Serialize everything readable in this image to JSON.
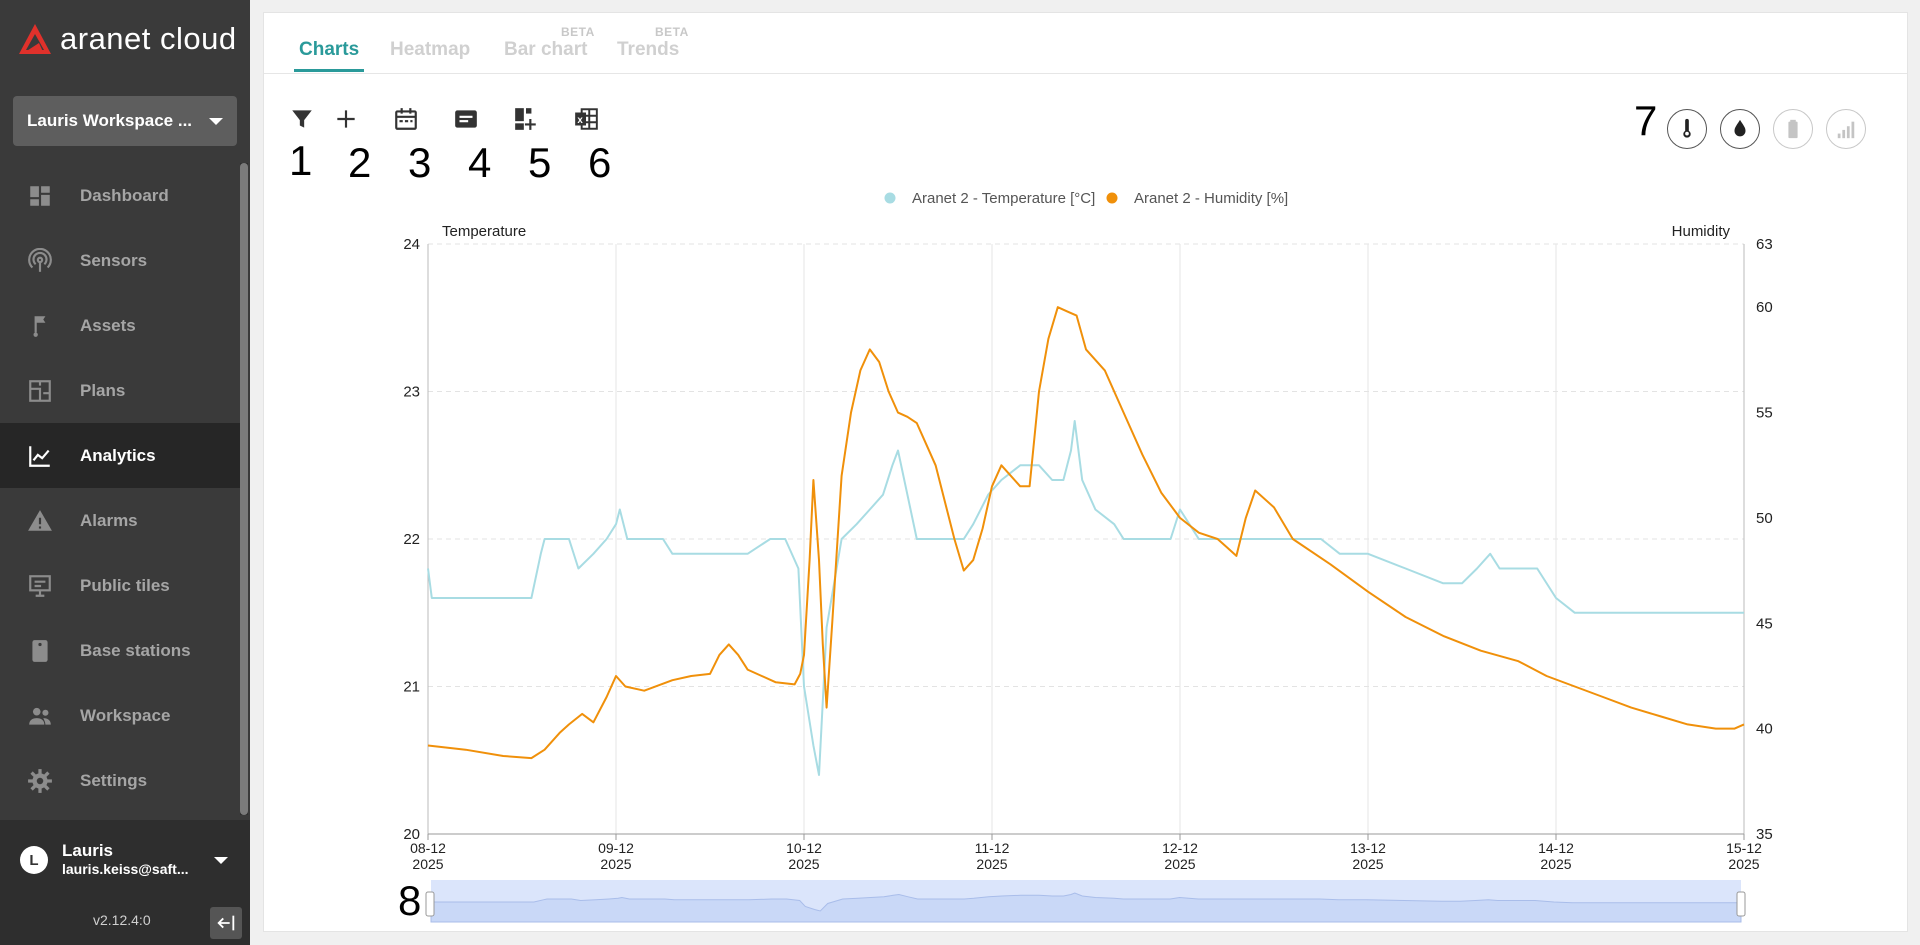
{
  "app": {
    "logo_text": "aranet cloud",
    "version": "v2.12.4:0"
  },
  "workspace": {
    "name": "Lauris Workspace ..."
  },
  "sidebar": {
    "items": [
      {
        "label": "Dashboard",
        "icon": "dashboard-icon"
      },
      {
        "label": "Sensors",
        "icon": "sensors-icon"
      },
      {
        "label": "Assets",
        "icon": "assets-icon"
      },
      {
        "label": "Plans",
        "icon": "plans-icon"
      },
      {
        "label": "Analytics",
        "icon": "analytics-icon",
        "active": true
      },
      {
        "label": "Alarms",
        "icon": "alarms-icon"
      },
      {
        "label": "Public tiles",
        "icon": "public-tiles-icon"
      },
      {
        "label": "Base stations",
        "icon": "base-stations-icon"
      },
      {
        "label": "Workspace",
        "icon": "workspace-icon"
      },
      {
        "label": "Settings",
        "icon": "settings-icon"
      }
    ]
  },
  "user": {
    "initial": "L",
    "name": "Lauris",
    "email": "lauris.keiss@saft..."
  },
  "tabs": [
    {
      "label": "Charts",
      "active": true,
      "badge": ""
    },
    {
      "label": "Heatmap",
      "active": false,
      "badge": ""
    },
    {
      "label": "Bar chart",
      "active": false,
      "badge": "BETA"
    },
    {
      "label": "Trends",
      "active": false,
      "badge": "BETA"
    }
  ],
  "toolbar": {
    "tools": [
      {
        "icon": "filter-icon",
        "annotation": "1"
      },
      {
        "icon": "add-icon",
        "annotation": "2"
      },
      {
        "icon": "calendar-icon",
        "annotation": "3"
      },
      {
        "icon": "notes-icon",
        "annotation": "4"
      },
      {
        "icon": "add-widget-icon",
        "annotation": "5"
      },
      {
        "icon": "excel-export-icon",
        "annotation": "6"
      }
    ],
    "metrics_annotation": "7",
    "metrics": [
      {
        "icon": "thermometer-icon",
        "enabled": true
      },
      {
        "icon": "humidity-drop-icon",
        "enabled": true
      },
      {
        "icon": "battery-icon",
        "enabled": false
      },
      {
        "icon": "signal-icon",
        "enabled": false
      }
    ],
    "navigator_annotation": "8"
  },
  "colors": {
    "accent": "#2a9a9a",
    "temperature": "#a8dce3",
    "humidity": "#f0900a",
    "sidebar_bg": "#3a3a3a",
    "navigator": "#c9d8f7"
  },
  "chart_data": {
    "type": "line",
    "legend": [
      "Aranet 2 - Temperature [°C]",
      "Aranet 2 - Humidity [%]"
    ],
    "left_axis": {
      "label": "Temperature",
      "min": 20,
      "max": 24,
      "ticks": [
        "20",
        "21",
        "22",
        "23",
        "24"
      ]
    },
    "right_axis": {
      "label": "Humidity",
      "min": 35,
      "max": 63,
      "ticks": [
        "35",
        "40",
        "45",
        "50",
        "55",
        "60",
        "63"
      ]
    },
    "x_ticks": [
      {
        "date": "08-12",
        "year": "2025"
      },
      {
        "date": "09-12",
        "year": "2025"
      },
      {
        "date": "10-12",
        "year": "2025"
      },
      {
        "date": "11-12",
        "year": "2025"
      },
      {
        "date": "12-12",
        "year": "2025"
      },
      {
        "date": "13-12",
        "year": "2025"
      },
      {
        "date": "14-12",
        "year": "2025"
      },
      {
        "date": "15-12",
        "year": "2025"
      }
    ],
    "series": [
      {
        "name": "Aranet 2 - Temperature [°C]",
        "axis": "left",
        "points": [
          [
            0.0,
            21.8
          ],
          [
            0.02,
            21.6
          ],
          [
            0.55,
            21.6
          ],
          [
            0.6,
            21.9
          ],
          [
            0.62,
            22.0
          ],
          [
            0.75,
            22.0
          ],
          [
            0.8,
            21.8
          ],
          [
            0.88,
            21.9
          ],
          [
            0.95,
            22.0
          ],
          [
            1.0,
            22.1
          ],
          [
            1.02,
            22.2
          ],
          [
            1.06,
            22.0
          ],
          [
            1.2,
            22.0
          ],
          [
            1.25,
            22.0
          ],
          [
            1.3,
            21.9
          ],
          [
            1.7,
            21.9
          ],
          [
            1.82,
            22.0
          ],
          [
            1.9,
            22.0
          ],
          [
            1.97,
            21.8
          ],
          [
            2.0,
            21.0
          ],
          [
            2.05,
            20.6
          ],
          [
            2.08,
            20.4
          ],
          [
            2.12,
            21.4
          ],
          [
            2.2,
            22.0
          ],
          [
            2.28,
            22.1
          ],
          [
            2.35,
            22.2
          ],
          [
            2.42,
            22.3
          ],
          [
            2.47,
            22.5
          ],
          [
            2.5,
            22.6
          ],
          [
            2.55,
            22.3
          ],
          [
            2.6,
            22.0
          ],
          [
            2.85,
            22.0
          ],
          [
            2.9,
            22.1
          ],
          [
            2.98,
            22.3
          ],
          [
            3.05,
            22.4
          ],
          [
            3.15,
            22.5
          ],
          [
            3.25,
            22.5
          ],
          [
            3.32,
            22.4
          ],
          [
            3.38,
            22.4
          ],
          [
            3.42,
            22.6
          ],
          [
            3.44,
            22.8
          ],
          [
            3.48,
            22.4
          ],
          [
            3.55,
            22.2
          ],
          [
            3.65,
            22.1
          ],
          [
            3.7,
            22.0
          ],
          [
            3.95,
            22.0
          ],
          [
            4.0,
            22.2
          ],
          [
            4.05,
            22.1
          ],
          [
            4.1,
            22.0
          ],
          [
            4.75,
            22.0
          ],
          [
            4.85,
            21.9
          ],
          [
            5.0,
            21.9
          ],
          [
            5.2,
            21.8
          ],
          [
            5.4,
            21.7
          ],
          [
            5.5,
            21.7
          ],
          [
            5.58,
            21.8
          ],
          [
            5.65,
            21.9
          ],
          [
            5.7,
            21.8
          ],
          [
            5.9,
            21.8
          ],
          [
            6.0,
            21.6
          ],
          [
            6.1,
            21.5
          ],
          [
            7.0,
            21.5
          ]
        ]
      },
      {
        "name": "Aranet 2 - Humidity [%]",
        "axis": "right",
        "points": [
          [
            0.0,
            39.2
          ],
          [
            0.2,
            39.0
          ],
          [
            0.4,
            38.7
          ],
          [
            0.55,
            38.6
          ],
          [
            0.62,
            39.0
          ],
          [
            0.7,
            39.8
          ],
          [
            0.75,
            40.2
          ],
          [
            0.82,
            40.7
          ],
          [
            0.88,
            40.3
          ],
          [
            0.95,
            41.5
          ],
          [
            1.0,
            42.5
          ],
          [
            1.05,
            42.0
          ],
          [
            1.15,
            41.8
          ],
          [
            1.3,
            42.3
          ],
          [
            1.4,
            42.5
          ],
          [
            1.5,
            42.6
          ],
          [
            1.55,
            43.5
          ],
          [
            1.6,
            44.0
          ],
          [
            1.65,
            43.5
          ],
          [
            1.7,
            42.8
          ],
          [
            1.85,
            42.2
          ],
          [
            1.95,
            42.1
          ],
          [
            1.98,
            42.6
          ],
          [
            2.0,
            43.5
          ],
          [
            2.03,
            48.0
          ],
          [
            2.05,
            51.8
          ],
          [
            2.08,
            48.0
          ],
          [
            2.1,
            44.0
          ],
          [
            2.12,
            41.0
          ],
          [
            2.15,
            45.0
          ],
          [
            2.2,
            52.0
          ],
          [
            2.25,
            55.0
          ],
          [
            2.3,
            57.0
          ],
          [
            2.35,
            58.0
          ],
          [
            2.4,
            57.4
          ],
          [
            2.45,
            56.0
          ],
          [
            2.5,
            55.0
          ],
          [
            2.55,
            54.8
          ],
          [
            2.6,
            54.5
          ],
          [
            2.65,
            53.5
          ],
          [
            2.7,
            52.5
          ],
          [
            2.8,
            49.0
          ],
          [
            2.85,
            47.5
          ],
          [
            2.9,
            48.0
          ],
          [
            2.95,
            49.5
          ],
          [
            3.0,
            51.5
          ],
          [
            3.05,
            52.5
          ],
          [
            3.1,
            52.0
          ],
          [
            3.15,
            51.5
          ],
          [
            3.2,
            51.5
          ],
          [
            3.25,
            56.0
          ],
          [
            3.3,
            58.5
          ],
          [
            3.35,
            60.0
          ],
          [
            3.4,
            59.8
          ],
          [
            3.45,
            59.6
          ],
          [
            3.5,
            58.0
          ],
          [
            3.55,
            57.5
          ],
          [
            3.6,
            57.0
          ],
          [
            3.7,
            55.0
          ],
          [
            3.8,
            53.0
          ],
          [
            3.9,
            51.2
          ],
          [
            4.0,
            50.0
          ],
          [
            4.1,
            49.3
          ],
          [
            4.2,
            49.0
          ],
          [
            4.25,
            48.6
          ],
          [
            4.3,
            48.2
          ],
          [
            4.35,
            50.0
          ],
          [
            4.4,
            51.3
          ],
          [
            4.5,
            50.5
          ],
          [
            4.6,
            49.0
          ],
          [
            4.8,
            47.8
          ],
          [
            5.0,
            46.5
          ],
          [
            5.2,
            45.3
          ],
          [
            5.4,
            44.4
          ],
          [
            5.6,
            43.7
          ],
          [
            5.8,
            43.2
          ],
          [
            5.95,
            42.5
          ],
          [
            6.1,
            42.0
          ],
          [
            6.25,
            41.5
          ],
          [
            6.4,
            41.0
          ],
          [
            6.55,
            40.6
          ],
          [
            6.7,
            40.2
          ],
          [
            6.85,
            40.0
          ],
          [
            6.95,
            40.0
          ],
          [
            7.0,
            40.2
          ]
        ]
      }
    ]
  }
}
